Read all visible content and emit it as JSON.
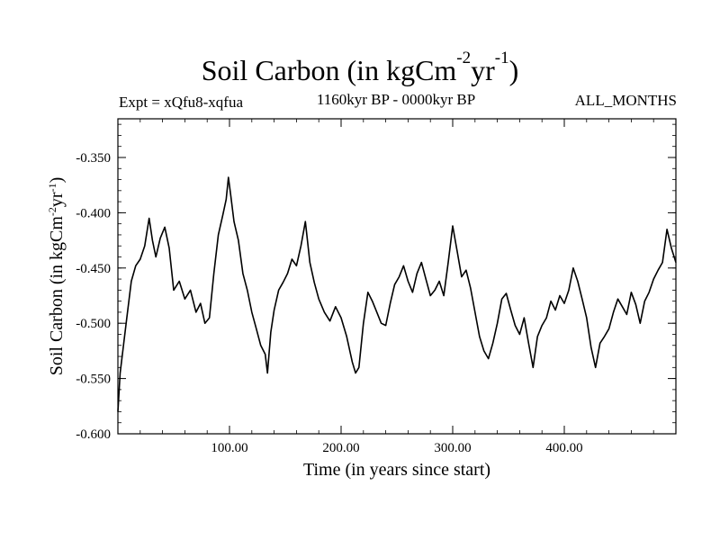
{
  "header": {
    "title_main": "Soil Carbon (in kgCm",
    "title_sup1": "-2",
    "title_mid": "yr",
    "title_sup2": "-1",
    "title_end": ")",
    "expt": "Expt = xQfu8-xqfua",
    "period": "1160kyr BP - 0000kyr BP",
    "months": "ALL_MONTHS"
  },
  "chart_data": {
    "type": "line",
    "title": "Soil Carbon (in kgCm-2yr-1)",
    "subtitle": "1160kyr BP - 0000kyr BP",
    "annotations": [
      "Expt = xQfu8-xqfua",
      "ALL_MONTHS"
    ],
    "xlabel": "Time (in years since start)",
    "ylabel": "Soil Carbon (in kgCm-2yr-1)",
    "xlim": [
      0,
      500
    ],
    "ylim": [
      -0.6,
      -0.315
    ],
    "x_ticks": [
      100,
      200,
      300,
      400
    ],
    "x_tick_labels": [
      "100.00",
      "200.00",
      "300.00",
      "400.00"
    ],
    "y_ticks": [
      -0.6,
      -0.55,
      -0.5,
      -0.45,
      -0.4,
      -0.35
    ],
    "y_tick_labels": [
      "-0.600",
      "-0.550",
      "-0.500",
      "-0.450",
      "-0.400",
      "-0.350"
    ],
    "grid": false,
    "series": [
      {
        "color": "#000000",
        "x": [
          0,
          2,
          5,
          8,
          12,
          16,
          20,
          24,
          28,
          31,
          34,
          38,
          42,
          46,
          50,
          55,
          60,
          65,
          70,
          74,
          78,
          82,
          86,
          90,
          94,
          97,
          99,
          101,
          104,
          108,
          112,
          116,
          120,
          124,
          128,
          132,
          134,
          137,
          140,
          144,
          148,
          152,
          156,
          160,
          164,
          168,
          172,
          176,
          180,
          185,
          190,
          195,
          200,
          205,
          210,
          213,
          216,
          220,
          224,
          228,
          232,
          236,
          240,
          244,
          248,
          252,
          256,
          260,
          264,
          268,
          272,
          276,
          280,
          284,
          288,
          292,
          296,
          300,
          304,
          308,
          312,
          316,
          320,
          324,
          328,
          332,
          336,
          340,
          344,
          348,
          352,
          356,
          360,
          364,
          368,
          372,
          376,
          380,
          384,
          388,
          392,
          396,
          400,
          404,
          408,
          412,
          416,
          420,
          424,
          428,
          432,
          436,
          440,
          444,
          448,
          452,
          456,
          460,
          464,
          468,
          472,
          476,
          480,
          484,
          488,
          492,
          496,
          500
        ],
        "y": [
          -0.58,
          -0.545,
          -0.52,
          -0.495,
          -0.462,
          -0.448,
          -0.442,
          -0.43,
          -0.405,
          -0.425,
          -0.44,
          -0.423,
          -0.413,
          -0.432,
          -0.47,
          -0.462,
          -0.478,
          -0.47,
          -0.49,
          -0.482,
          -0.5,
          -0.495,
          -0.455,
          -0.42,
          -0.402,
          -0.388,
          -0.368,
          -0.383,
          -0.408,
          -0.425,
          -0.455,
          -0.47,
          -0.49,
          -0.505,
          -0.52,
          -0.528,
          -0.545,
          -0.508,
          -0.488,
          -0.47,
          -0.463,
          -0.455,
          -0.442,
          -0.448,
          -0.43,
          -0.408,
          -0.445,
          -0.463,
          -0.478,
          -0.49,
          -0.498,
          -0.485,
          -0.495,
          -0.512,
          -0.535,
          -0.545,
          -0.54,
          -0.5,
          -0.472,
          -0.48,
          -0.49,
          -0.5,
          -0.502,
          -0.482,
          -0.465,
          -0.458,
          -0.448,
          -0.462,
          -0.472,
          -0.455,
          -0.445,
          -0.46,
          -0.475,
          -0.47,
          -0.462,
          -0.475,
          -0.445,
          -0.412,
          -0.435,
          -0.458,
          -0.452,
          -0.468,
          -0.49,
          -0.512,
          -0.525,
          -0.532,
          -0.518,
          -0.5,
          -0.478,
          -0.473,
          -0.488,
          -0.502,
          -0.51,
          -0.495,
          -0.518,
          -0.54,
          -0.512,
          -0.502,
          -0.495,
          -0.48,
          -0.488,
          -0.475,
          -0.482,
          -0.47,
          -0.45,
          -0.462,
          -0.478,
          -0.495,
          -0.522,
          -0.54,
          -0.518,
          -0.512,
          -0.505,
          -0.49,
          -0.478,
          -0.485,
          -0.492,
          -0.472,
          -0.483,
          -0.5,
          -0.48,
          -0.472,
          -0.46,
          -0.452,
          -0.445,
          -0.415,
          -0.432,
          -0.445
        ]
      }
    ]
  }
}
